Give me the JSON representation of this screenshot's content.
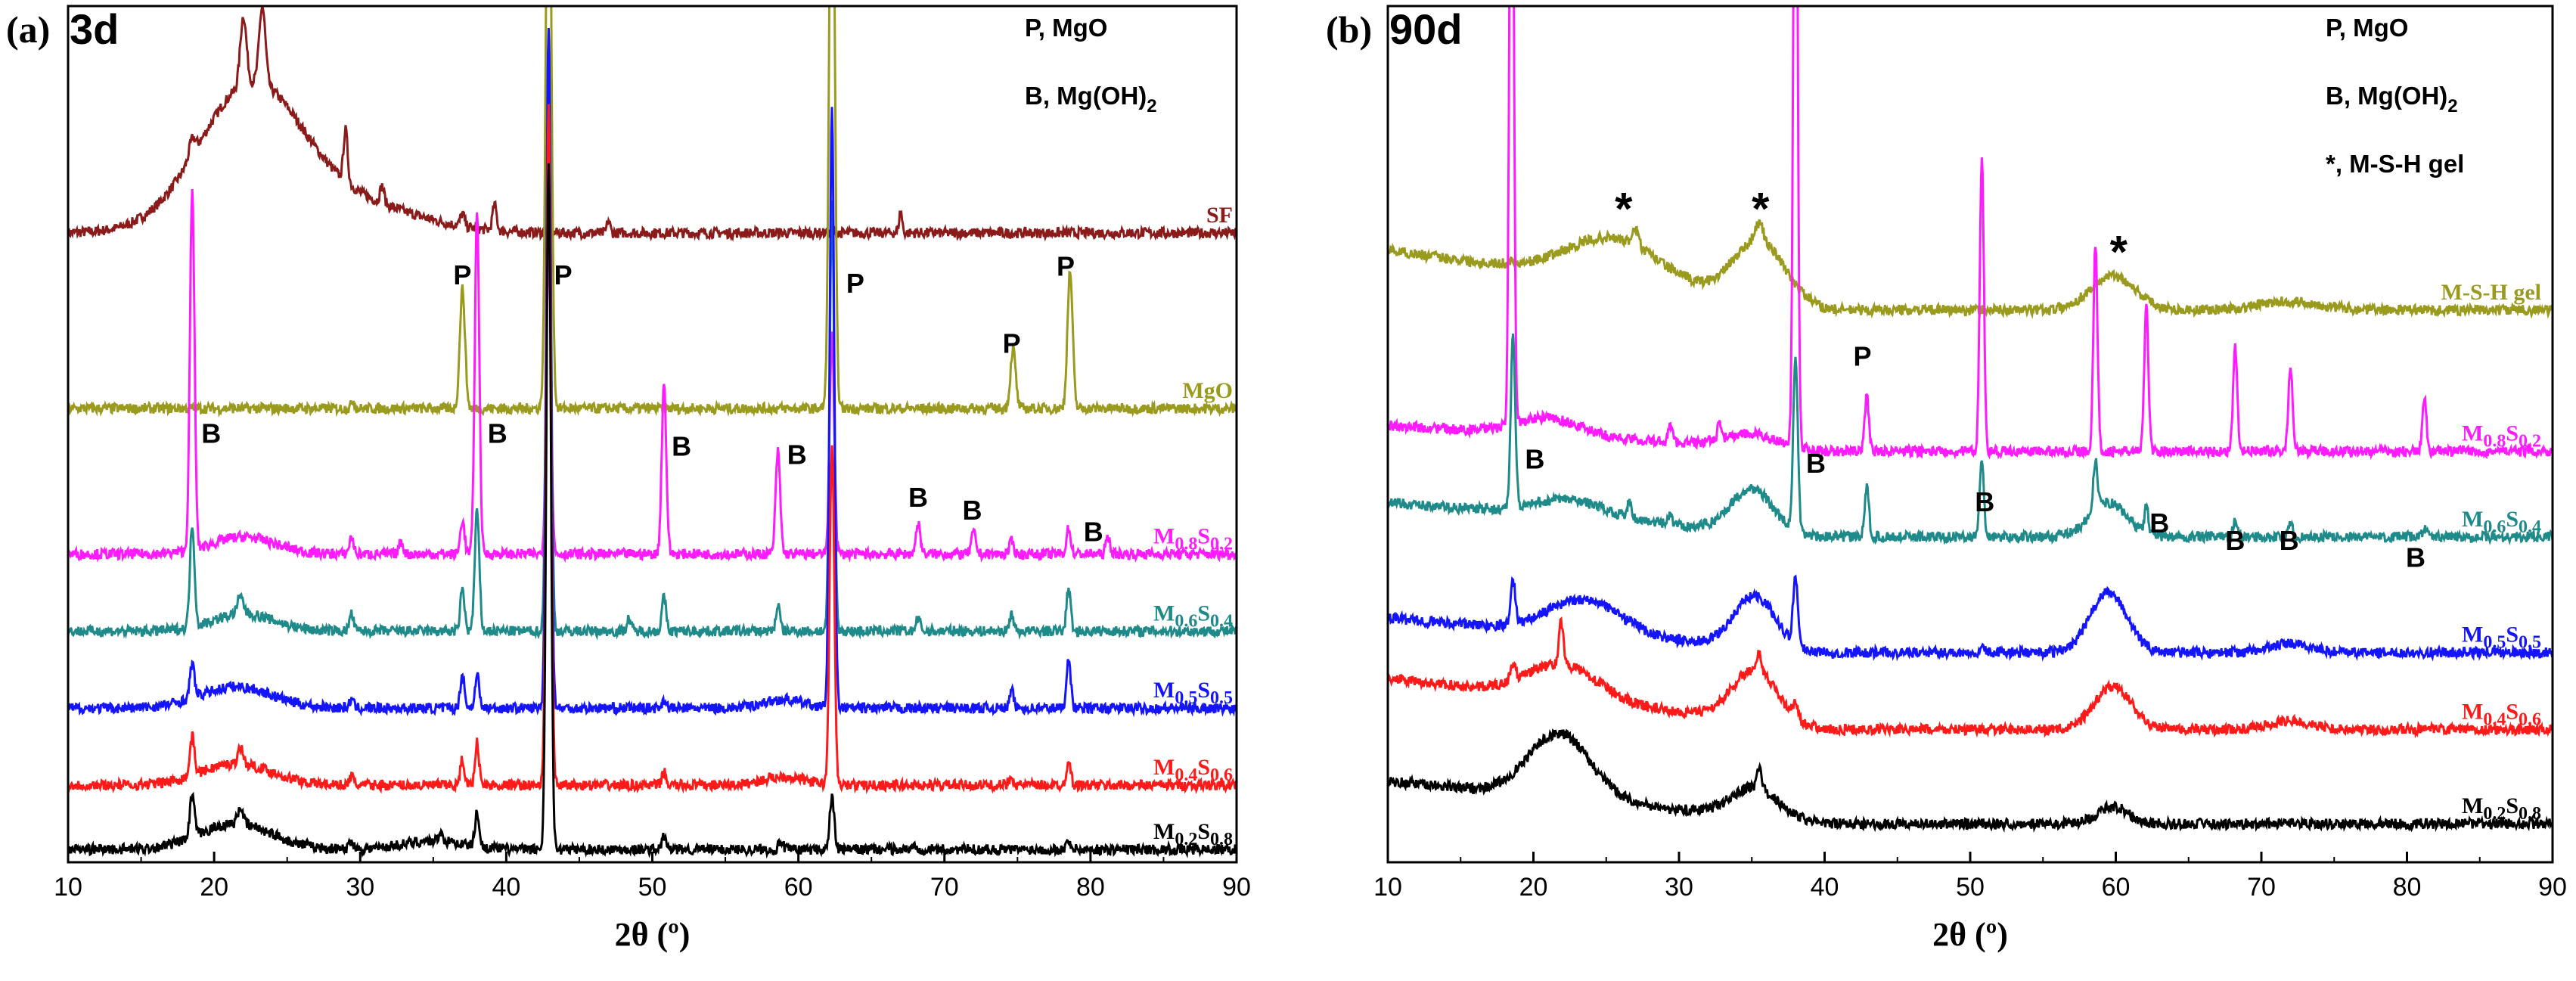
{
  "chart_data": [
    {
      "type": "line",
      "panel_letter": "(a)",
      "panel_age": "3d",
      "xlabel": "2θ (º)",
      "ylabel": "",
      "xlim": [
        10,
        90
      ],
      "xticks": [
        10,
        20,
        30,
        40,
        50,
        60,
        70,
        80,
        90
      ],
      "legend_top": [
        {
          "text": "P, MgO"
        },
        {
          "text": "B, Mg(OH)",
          "sub": "2"
        }
      ],
      "phase_colors": {
        "SF": "#8b1a1a",
        "MgO": "#9a9a1e",
        "M0.8S0.2": "#ff1aff",
        "M0.6S0.4": "#1f8a8a",
        "M0.5S0.5": "#1414ff",
        "M0.4S0.6": "#ff1a1a",
        "M0.2S0.8": "#000000"
      },
      "series": [
        {
          "name": "SF",
          "label": {
            "M": "SF"
          },
          "color": "#8b1a1a",
          "baseline": 0.265,
          "tail": 0.0,
          "peaks": [
            [
              18.5,
              0.02,
              0.3
            ],
            [
              22.0,
              0.08,
              0.3
            ],
            [
              23.3,
              0.09,
              0.3
            ],
            [
              29.0,
              0.06,
              0.2
            ],
            [
              31.5,
              0.02,
              0.2
            ],
            [
              37.0,
              0.015,
              0.2
            ],
            [
              39.2,
              0.03,
              0.2
            ],
            [
              42.9,
              0.01,
              0.15
            ],
            [
              47.0,
              0.015,
              0.15
            ],
            [
              67.0,
              0.025,
              0.15
            ]
          ],
          "humps": [
            [
              22.5,
              0.17,
              5.0
            ],
            [
              30,
              0.03,
              6
            ]
          ],
          "rise": 0.0
        },
        {
          "name": "MgO",
          "label": {
            "M": "MgO"
          },
          "color": "#9a9a1e",
          "baseline": 0.47,
          "peaks": [
            [
              37.0,
              0.14,
              0.25
            ],
            [
              42.9,
              0.8,
              0.25
            ],
            [
              62.3,
              0.8,
              0.25
            ],
            [
              74.7,
              0.07,
              0.25
            ],
            [
              78.6,
              0.16,
              0.25
            ],
            [
              29.5,
              0.01,
              0.15
            ]
          ],
          "humps": []
        },
        {
          "name": "M0.8S0.2",
          "label": {
            "M": "0.8",
            "S": "0.2"
          },
          "color": "#ff1aff",
          "baseline": 0.64,
          "peaks": [
            [
              18.5,
              0.42,
              0.22
            ],
            [
              29.4,
              0.02,
              0.2
            ],
            [
              32.8,
              0.015,
              0.2
            ],
            [
              37.0,
              0.04,
              0.2
            ],
            [
              38.0,
              0.4,
              0.22
            ],
            [
              42.9,
              0.36,
              0.22
            ],
            [
              50.8,
              0.2,
              0.22
            ],
            [
              58.6,
              0.12,
              0.22
            ],
            [
              62.3,
              0.26,
              0.22
            ],
            [
              68.2,
              0.035,
              0.22
            ],
            [
              72.0,
              0.025,
              0.22
            ],
            [
              74.6,
              0.015,
              0.2
            ],
            [
              78.5,
              0.03,
              0.2
            ],
            [
              81.2,
              0.02,
              0.2
            ]
          ],
          "humps": [
            [
              22,
              0.02,
              3
            ]
          ]
        },
        {
          "name": "M0.6S0.4",
          "label": {
            "M": "0.6",
            "S": "0.4"
          },
          "color": "#1f8a8a",
          "baseline": 0.73,
          "peaks": [
            [
              18.5,
              0.12,
              0.22
            ],
            [
              21.8,
              0.02,
              0.3
            ],
            [
              29.4,
              0.02,
              0.2
            ],
            [
              37.0,
              0.05,
              0.2
            ],
            [
              38.0,
              0.14,
              0.22
            ],
            [
              42.9,
              0.7,
              0.22
            ],
            [
              48.4,
              0.015,
              0.2
            ],
            [
              50.8,
              0.04,
              0.2
            ],
            [
              58.6,
              0.03,
              0.2
            ],
            [
              62.3,
              0.5,
              0.22
            ],
            [
              68.2,
              0.015,
              0.2
            ],
            [
              74.6,
              0.02,
              0.2
            ],
            [
              78.5,
              0.05,
              0.2
            ]
          ],
          "humps": [
            [
              22,
              0.02,
              3
            ]
          ]
        },
        {
          "name": "M0.5S0.5",
          "label": {
            "M": "0.5",
            "S": "0.5"
          },
          "color": "#1414ff",
          "baseline": 0.82,
          "peaks": [
            [
              18.5,
              0.04,
              0.22
            ],
            [
              29.4,
              0.01,
              0.2
            ],
            [
              37.0,
              0.04,
              0.2
            ],
            [
              38.0,
              0.04,
              0.2
            ],
            [
              42.9,
              0.8,
              0.22
            ],
            [
              50.8,
              0.01,
              0.2
            ],
            [
              62.3,
              0.7,
              0.22
            ],
            [
              74.6,
              0.02,
              0.2
            ],
            [
              78.5,
              0.06,
              0.2
            ]
          ],
          "humps": [
            [
              21.5,
              0.025,
              3.5
            ],
            [
              59,
              0.01,
              2
            ]
          ]
        },
        {
          "name": "M0.4S0.6",
          "label": {
            "M": "0.4",
            "S": "0.6"
          },
          "color": "#ff1a1a",
          "baseline": 0.91,
          "peaks": [
            [
              18.5,
              0.045,
              0.22
            ],
            [
              21.8,
              0.02,
              0.25
            ],
            [
              29.4,
              0.01,
              0.2
            ],
            [
              37.0,
              0.03,
              0.2
            ],
            [
              38.0,
              0.05,
              0.2
            ],
            [
              42.9,
              0.8,
              0.22
            ],
            [
              50.8,
              0.015,
              0.2
            ],
            [
              62.3,
              0.4,
              0.22
            ],
            [
              74.6,
              0.01,
              0.2
            ],
            [
              78.5,
              0.03,
              0.2
            ]
          ],
          "humps": [
            [
              21.5,
              0.025,
              3.5
            ],
            [
              59,
              0.01,
              2
            ]
          ]
        },
        {
          "name": "M0.2S0.8",
          "label": {
            "M": "0.2",
            "S": "0.8"
          },
          "color": "#000000",
          "baseline": 0.985,
          "peaks": [
            [
              18.5,
              0.05,
              0.22
            ],
            [
              21.8,
              0.02,
              0.25
            ],
            [
              29.4,
              0.01,
              0.2
            ],
            [
              35.5,
              0.01,
              0.2
            ],
            [
              38.0,
              0.04,
              0.2
            ],
            [
              42.9,
              0.8,
              0.22
            ],
            [
              50.8,
              0.015,
              0.2
            ],
            [
              58.8,
              0.01,
              0.2
            ],
            [
              62.3,
              0.06,
              0.22
            ],
            [
              68.0,
              0.005,
              0.2
            ],
            [
              78.5,
              0.01,
              0.2
            ]
          ],
          "humps": [
            [
              21.5,
              0.03,
              3.5
            ],
            [
              35,
              0.01,
              3
            ]
          ]
        }
      ],
      "annotations": [
        {
          "text": "P",
          "x": 37.0,
          "y": 0.325
        },
        {
          "text": "P",
          "x": 43.9,
          "y": 0.325
        },
        {
          "text": "P",
          "x": 63.9,
          "y": 0.335
        },
        {
          "text": "P",
          "x": 74.6,
          "y": 0.405
        },
        {
          "text": "P",
          "x": 78.3,
          "y": 0.315
        },
        {
          "text": "B",
          "x": 19.8,
          "y": 0.51
        },
        {
          "text": "B",
          "x": 39.4,
          "y": 0.51
        },
        {
          "text": "B",
          "x": 52.0,
          "y": 0.525
        },
        {
          "text": "B",
          "x": 59.9,
          "y": 0.535
        },
        {
          "text": "B",
          "x": 68.2,
          "y": 0.585
        },
        {
          "text": "B",
          "x": 71.9,
          "y": 0.6
        },
        {
          "text": "B",
          "x": 80.2,
          "y": 0.625
        }
      ]
    },
    {
      "type": "line",
      "panel_letter": "(b)",
      "panel_age": "90d",
      "xlabel": "2θ (º)",
      "ylabel": "",
      "xlim": [
        10,
        90
      ],
      "xticks": [
        10,
        20,
        30,
        40,
        50,
        60,
        70,
        80,
        90
      ],
      "legend_top": [
        {
          "text": "P, MgO"
        },
        {
          "text": "B, Mg(OH)",
          "sub": "2"
        },
        {
          "text": "*, M-S-H gel"
        }
      ],
      "series": [
        {
          "name": "M-S-H gel",
          "label": {
            "M": "M-S-H gel"
          },
          "color": "#9a9a1e",
          "baseline": 0.355,
          "peaks": [
            [
              27.0,
              0.02,
              0.3
            ],
            [
              18.6,
              0.005,
              0.2
            ],
            [
              35.5,
              0.02,
              0.4
            ]
          ],
          "humps": [
            [
              25.5,
              0.05,
              4.5
            ],
            [
              35.5,
              0.07,
              2.5
            ],
            [
              59.8,
              0.04,
              2.2
            ],
            [
              72,
              0.01,
              3
            ]
          ],
          "rise": 0.07
        },
        {
          "name": "M0.8S0.2",
          "label": {
            "M": "0.8",
            "S": "0.2"
          },
          "color": "#ff1aff",
          "baseline": 0.52,
          "peaks": [
            [
              18.5,
              0.9,
              0.2
            ],
            [
              29.4,
              0.02,
              0.2
            ],
            [
              32.8,
              0.02,
              0.2
            ],
            [
              38.0,
              0.9,
              0.2
            ],
            [
              42.9,
              0.065,
              0.2
            ],
            [
              50.8,
              0.34,
              0.2
            ],
            [
              58.6,
              0.24,
              0.2
            ],
            [
              62.1,
              0.17,
              0.2
            ],
            [
              68.2,
              0.12,
              0.2
            ],
            [
              72.0,
              0.1,
              0.2
            ],
            [
              81.2,
              0.06,
              0.2
            ]
          ],
          "humps": [
            [
              21,
              0.02,
              3
            ],
            [
              35,
              0.015,
              2.5
            ]
          ],
          "rise": 0.03
        },
        {
          "name": "M0.6S0.4",
          "label": {
            "M": "0.6",
            "S": "0.4"
          },
          "color": "#1f8a8a",
          "baseline": 0.62,
          "peaks": [
            [
              18.6,
              0.2,
              0.22
            ],
            [
              26.6,
              0.02,
              0.2
            ],
            [
              29.4,
              0.01,
              0.2
            ],
            [
              38.0,
              0.2,
              0.22
            ],
            [
              42.9,
              0.06,
              0.2
            ],
            [
              50.8,
              0.09,
              0.2
            ],
            [
              58.6,
              0.06,
              0.2
            ],
            [
              62.1,
              0.03,
              0.2
            ],
            [
              68.2,
              0.02,
              0.2
            ],
            [
              72.0,
              0.015,
              0.2
            ],
            [
              81.2,
              0.01,
              0.2
            ]
          ],
          "humps": [
            [
              22.5,
              0.02,
              3.5
            ],
            [
              35,
              0.05,
              2
            ],
            [
              59.5,
              0.04,
              1.8
            ]
          ],
          "rise": 0.04
        },
        {
          "name": "M0.5S0.5",
          "label": {
            "M": "0.5",
            "S": "0.5"
          },
          "color": "#1414ff",
          "baseline": 0.755,
          "peaks": [
            [
              18.6,
              0.05,
              0.22
            ],
            [
              38.0,
              0.08,
              0.22
            ],
            [
              50.8,
              0.01,
              0.2
            ]
          ],
          "humps": [
            [
              23.5,
              0.04,
              3.5
            ],
            [
              35.2,
              0.06,
              2
            ],
            [
              59.5,
              0.07,
              1.8
            ],
            [
              72,
              0.01,
              2
            ]
          ],
          "rise": 0.04
        },
        {
          "name": "M0.4S0.6",
          "label": {
            "M": "0.4",
            "S": "0.6"
          },
          "color": "#ff1a1a",
          "baseline": 0.845,
          "peaks": [
            [
              18.6,
              0.02,
              0.22
            ],
            [
              21.9,
              0.05,
              0.22
            ],
            [
              35.5,
              0.02,
              0.2
            ],
            [
              38.0,
              0.02,
              0.2
            ]
          ],
          "humps": [
            [
              22,
              0.04,
              3.5
            ],
            [
              35.2,
              0.06,
              2.2
            ],
            [
              59.8,
              0.05,
              1.8
            ],
            [
              72,
              0.01,
              2
            ]
          ],
          "rise": 0.06
        },
        {
          "name": "M0.2S0.8",
          "label": {
            "M": "0.2",
            "S": "0.8"
          },
          "color": "#000000",
          "baseline": 0.955,
          "peaks": [
            [
              35.5,
              0.025,
              0.2
            ]
          ],
          "humps": [
            [
              21.8,
              0.075,
              3.0
            ],
            [
              35.2,
              0.035,
              2.2
            ],
            [
              59.8,
              0.02,
              1.5
            ]
          ],
          "rise": 0.05
        }
      ],
      "annotations": [
        {
          "text": "*",
          "x": 26.2,
          "y": 0.255
        },
        {
          "text": "*",
          "x": 35.6,
          "y": 0.255
        },
        {
          "text": "*",
          "x": 60.2,
          "y": 0.305
        },
        {
          "text": "P",
          "x": 42.6,
          "y": 0.42
        },
        {
          "text": "B",
          "x": 20.1,
          "y": 0.54
        },
        {
          "text": "B",
          "x": 39.4,
          "y": 0.545
        },
        {
          "text": "B",
          "x": 51.0,
          "y": 0.59
        },
        {
          "text": "B",
          "x": 63.0,
          "y": 0.615
        },
        {
          "text": "B",
          "x": 68.2,
          "y": 0.635
        },
        {
          "text": "B",
          "x": 71.9,
          "y": 0.635
        },
        {
          "text": "B",
          "x": 80.6,
          "y": 0.655
        }
      ]
    }
  ]
}
